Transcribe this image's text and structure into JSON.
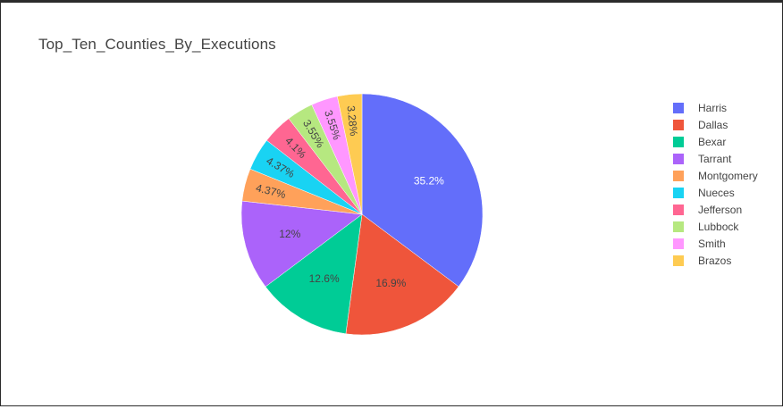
{
  "chart_data": {
    "type": "pie",
    "title": "Top_Ten_Counties_By_Executions",
    "categories": [
      "Harris",
      "Dallas",
      "Bexar",
      "Tarrant",
      "Montgomery",
      "Nueces",
      "Jefferson",
      "Lubbock",
      "Smith",
      "Brazos"
    ],
    "values": [
      35.2,
      16.9,
      12.6,
      12,
      4.37,
      4.37,
      4.1,
      3.55,
      3.55,
      3.28
    ],
    "labels": [
      "35.2%",
      "16.9%",
      "12.6%",
      "12%",
      "4.37%",
      "4.37%",
      "4.1%",
      "3.55%",
      "3.55%",
      "3.28%"
    ],
    "colors": [
      "#636efa",
      "#ef553b",
      "#00cc96",
      "#ab63fa",
      "#ffa15a",
      "#19d3f3",
      "#ff6692",
      "#b6e880",
      "#ff97ff",
      "#fecb52"
    ],
    "label_colors": [
      "#ffffff",
      "#444444",
      "#444444",
      "#444444",
      "#444444",
      "#444444",
      "#444444",
      "#444444",
      "#444444",
      "#444444"
    ],
    "legend_position": "right",
    "direction": "clockwise",
    "start": "top"
  }
}
